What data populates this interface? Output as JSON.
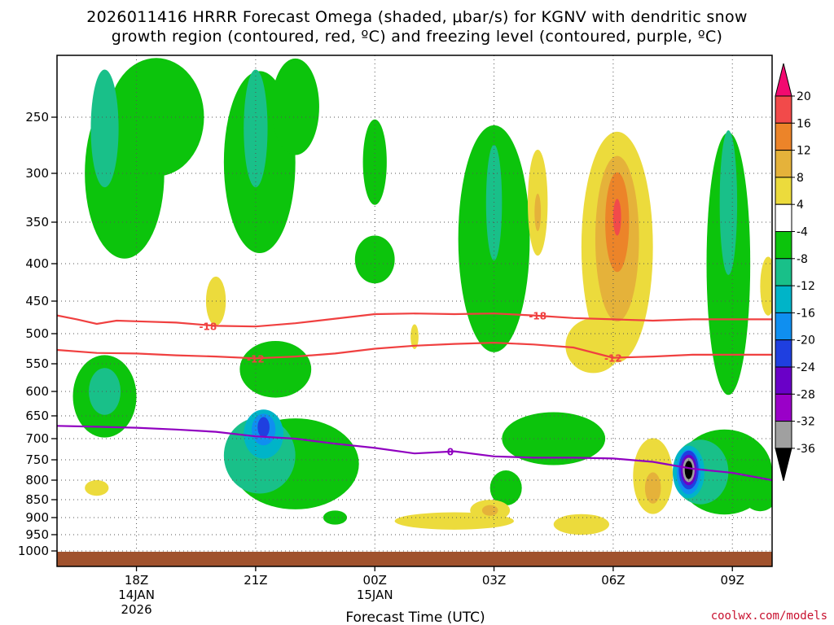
{
  "chart_data": {
    "type": "heatmap",
    "title_line1": "2026011416 HRRR Forecast Omega (shaded, μbar/s) for KGNV with dendritic snow",
    "title_line2": "growth region (contoured, red, ºC) and freezing level (contoured, purple, ºC)",
    "xlabel": "Forecast Time (UTC)",
    "ylabel": "",
    "x_ticks": [
      {
        "hour": 18,
        "label": "18Z",
        "sub1": "14JAN",
        "sub2": "2026"
      },
      {
        "hour": 21,
        "label": "21Z",
        "sub1": "",
        "sub2": ""
      },
      {
        "hour": 24,
        "label": "00Z",
        "sub1": "15JAN",
        "sub2": ""
      },
      {
        "hour": 27,
        "label": "03Z",
        "sub1": "",
        "sub2": ""
      },
      {
        "hour": 30,
        "label": "06Z",
        "sub1": "",
        "sub2": ""
      },
      {
        "hour": 33,
        "label": "09Z",
        "sub1": "",
        "sub2": ""
      }
    ],
    "x_range_hours": [
      16,
      34
    ],
    "y_ticks": [
      250,
      300,
      350,
      400,
      450,
      500,
      550,
      600,
      650,
      700,
      750,
      800,
      850,
      900,
      950,
      1000
    ],
    "y_range_mb": [
      200,
      1000
    ],
    "colorbar": {
      "labels": [
        "20",
        "16",
        "12",
        "8",
        "4",
        "-4",
        "-8",
        "-12",
        "-16",
        "-20",
        "-24",
        "-28",
        "-32",
        "-36"
      ],
      "colors": [
        "#f20a70",
        "#f24a4a",
        "#ec8429",
        "#e5b23a",
        "#ecdb3c",
        "#ffffff",
        "#0cc40c",
        "#19c089",
        "#00b4c8",
        "#0f8ff0",
        "#1f3fe0",
        "#6a00c8",
        "#9a00c8",
        "#a0a0a0",
        "#000000"
      ]
    },
    "contours": [
      {
        "name": "-18C",
        "label": "-18",
        "color": "#f04040",
        "points": [
          [
            16,
            472
          ],
          [
            16.5,
            478
          ],
          [
            17,
            485
          ],
          [
            17.5,
            480
          ],
          [
            18,
            481
          ],
          [
            19,
            483
          ],
          [
            20,
            488
          ],
          [
            21,
            489
          ],
          [
            22,
            484
          ],
          [
            23,
            477
          ],
          [
            24,
            470
          ],
          [
            25,
            469
          ],
          [
            26,
            470
          ],
          [
            27,
            469
          ],
          [
            28,
            472
          ],
          [
            29,
            476
          ],
          [
            30,
            478
          ],
          [
            31,
            480
          ],
          [
            32,
            478
          ],
          [
            33,
            478
          ],
          [
            34,
            478
          ]
        ]
      },
      {
        "name": "-12C",
        "label": "-12",
        "color": "#f04040",
        "points": [
          [
            16,
            527
          ],
          [
            17,
            532
          ],
          [
            18,
            533
          ],
          [
            19,
            536
          ],
          [
            20,
            538
          ],
          [
            21,
            541
          ],
          [
            22,
            538
          ],
          [
            23,
            533
          ],
          [
            24,
            525
          ],
          [
            25,
            520
          ],
          [
            26,
            517
          ],
          [
            27,
            515
          ],
          [
            28,
            518
          ],
          [
            29,
            523
          ],
          [
            30,
            540
          ],
          [
            31,
            538
          ],
          [
            32,
            535
          ],
          [
            33,
            535
          ],
          [
            34,
            535
          ]
        ]
      },
      {
        "name": "freezing",
        "label": "0",
        "color": "#9000c0",
        "points": [
          [
            16,
            672
          ],
          [
            17,
            674
          ],
          [
            18,
            676
          ],
          [
            19,
            680
          ],
          [
            20,
            685
          ],
          [
            21,
            695
          ],
          [
            22,
            700
          ],
          [
            23,
            712
          ],
          [
            24,
            722
          ],
          [
            25,
            735
          ],
          [
            26,
            730
          ],
          [
            27,
            742
          ],
          [
            28,
            745
          ],
          [
            29,
            745
          ],
          [
            30,
            747
          ],
          [
            31,
            755
          ],
          [
            32,
            772
          ],
          [
            33,
            782
          ],
          [
            34,
            800
          ]
        ]
      }
    ],
    "omega_cells": [
      {
        "t": 17.7,
        "p": 300,
        "v": -8,
        "rt": 1.0,
        "rp": 170
      },
      {
        "t": 18.5,
        "p": 250,
        "v": -8,
        "rt": 1.2,
        "rp": 110
      },
      {
        "t": 17.2,
        "p": 260,
        "v": -12,
        "rt": 0.35,
        "rp": 110
      },
      {
        "t": 21.1,
        "p": 290,
        "v": -8,
        "rt": 0.9,
        "rp": 180
      },
      {
        "t": 22.0,
        "p": 240,
        "v": -8,
        "rt": 0.6,
        "rp": 90
      },
      {
        "t": 21.0,
        "p": 260,
        "v": -12,
        "rt": 0.3,
        "rp": 110
      },
      {
        "t": 24.0,
        "p": 290,
        "v": -8,
        "rt": 0.3,
        "rp": 80
      },
      {
        "t": 24.0,
        "p": 395,
        "v": -8,
        "rt": 0.5,
        "rp": 60
      },
      {
        "t": 27.0,
        "p": 370,
        "v": -8,
        "rt": 0.9,
        "rp": 260
      },
      {
        "t": 27.0,
        "p": 330,
        "v": -12,
        "rt": 0.2,
        "rp": 120
      },
      {
        "t": 32.9,
        "p": 400,
        "v": -8,
        "rt": 0.55,
        "rp": 320
      },
      {
        "t": 32.9,
        "p": 330,
        "v": -12,
        "rt": 0.22,
        "rp": 150
      },
      {
        "t": 17.2,
        "p": 610,
        "v": -8,
        "rt": 0.8,
        "rp": 160
      },
      {
        "t": 17.2,
        "p": 600,
        "v": -12,
        "rt": 0.4,
        "rp": 90
      },
      {
        "t": 22.0,
        "p": 760,
        "v": -8,
        "rt": 1.6,
        "rp": 220
      },
      {
        "t": 21.1,
        "p": 740,
        "v": -12,
        "rt": 0.9,
        "rp": 180
      },
      {
        "t": 21.2,
        "p": 690,
        "v": -16,
        "rt": 0.5,
        "rp": 110
      },
      {
        "t": 21.2,
        "p": 680,
        "v": -20,
        "rt": 0.3,
        "rp": 70
      },
      {
        "t": 21.2,
        "p": 675,
        "v": -24,
        "rt": 0.15,
        "rp": 45
      },
      {
        "t": 21.5,
        "p": 560,
        "v": -8,
        "rt": 0.9,
        "rp": 100
      },
      {
        "t": 28.5,
        "p": 700,
        "v": -8,
        "rt": 1.3,
        "rp": 120
      },
      {
        "t": 27.3,
        "p": 820,
        "v": -8,
        "rt": 0.4,
        "rp": 90
      },
      {
        "t": 32.8,
        "p": 780,
        "v": -8,
        "rt": 1.2,
        "rp": 210
      },
      {
        "t": 32.2,
        "p": 780,
        "v": -12,
        "rt": 0.7,
        "rp": 160
      },
      {
        "t": 31.9,
        "p": 780,
        "v": -16,
        "rt": 0.4,
        "rp": 130
      },
      {
        "t": 31.9,
        "p": 780,
        "v": -20,
        "rt": 0.3,
        "rp": 110
      },
      {
        "t": 31.9,
        "p": 775,
        "v": -24,
        "rt": 0.25,
        "rp": 95
      },
      {
        "t": 31.9,
        "p": 775,
        "v": -28,
        "rt": 0.2,
        "rp": 75
      },
      {
        "t": 31.9,
        "p": 775,
        "v": -32,
        "rt": 0.15,
        "rp": 60
      },
      {
        "t": 31.9,
        "p": 775,
        "v": -36,
        "rt": 0.1,
        "rp": 45
      },
      {
        "t": 23.0,
        "p": 900,
        "v": -8,
        "rt": 0.3,
        "rp": 40
      },
      {
        "t": 33.7,
        "p": 820,
        "v": -8,
        "rt": 0.5,
        "rp": 120
      },
      {
        "t": 30.1,
        "p": 380,
        "v": 4,
        "rt": 0.9,
        "rp": 270
      },
      {
        "t": 30.1,
        "p": 370,
        "v": 8,
        "rt": 0.55,
        "rp": 190
      },
      {
        "t": 30.1,
        "p": 350,
        "v": 12,
        "rt": 0.3,
        "rp": 110
      },
      {
        "t": 30.1,
        "p": 345,
        "v": 16,
        "rt": 0.1,
        "rp": 40
      },
      {
        "t": 29.5,
        "p": 520,
        "v": 4,
        "rt": 0.7,
        "rp": 90
      },
      {
        "t": 31.0,
        "p": 790,
        "v": 4,
        "rt": 0.5,
        "rp": 190
      },
      {
        "t": 31.0,
        "p": 820,
        "v": 8,
        "rt": 0.2,
        "rp": 80
      },
      {
        "t": 29.2,
        "p": 920,
        "v": 4,
        "rt": 0.7,
        "rp": 60
      },
      {
        "t": 26.0,
        "p": 910,
        "v": 4,
        "rt": 1.5,
        "rp": 50
      },
      {
        "t": 26.9,
        "p": 880,
        "v": 4,
        "rt": 0.5,
        "rp": 60
      },
      {
        "t": 26.9,
        "p": 880,
        "v": 8,
        "rt": 0.2,
        "rp": 30
      },
      {
        "t": 28.1,
        "p": 330,
        "v": 4,
        "rt": 0.25,
        "rp": 110
      },
      {
        "t": 28.1,
        "p": 340,
        "v": 8,
        "rt": 0.08,
        "rp": 40
      },
      {
        "t": 20.0,
        "p": 450,
        "v": 4,
        "rt": 0.25,
        "rp": 70
      },
      {
        "t": 25.0,
        "p": 505,
        "v": 4,
        "rt": 0.1,
        "rp": 40
      },
      {
        "t": 17.0,
        "p": 820,
        "v": 4,
        "rt": 0.3,
        "rp": 40
      },
      {
        "t": 33.9,
        "p": 430,
        "v": 4,
        "rt": 0.2,
        "rp": 80
      }
    ]
  },
  "credit": "coolwx.com/models"
}
